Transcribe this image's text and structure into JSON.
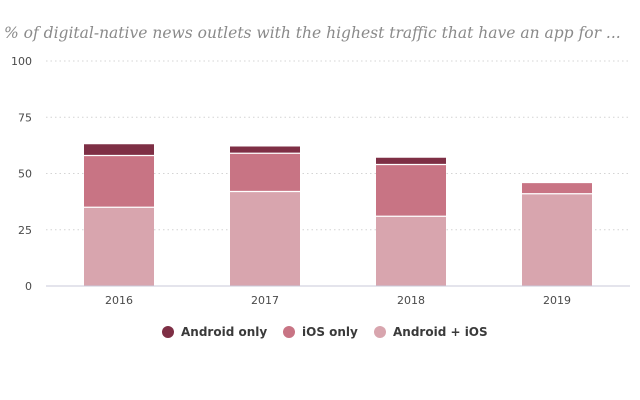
{
  "chart_data": {
    "type": "bar",
    "stacked": true,
    "title": "% of digital-native news outlets with the highest traffic that have an app for ...",
    "xlabel": "",
    "ylabel": "",
    "categories": [
      "2016",
      "2017",
      "2018",
      "2019"
    ],
    "series": [
      {
        "name": "Android + iOS",
        "color": "#d8a5ae",
        "values": [
          35,
          42,
          31,
          41
        ]
      },
      {
        "name": "iOS only",
        "color": "#c87484",
        "values": [
          23,
          17,
          23,
          5
        ]
      },
      {
        "name": "Android only",
        "color": "#7e2f45",
        "values": [
          5,
          3,
          3,
          0
        ]
      }
    ],
    "legend_order": [
      "Android only",
      "iOS only",
      "Android + iOS"
    ],
    "ylim": [
      0,
      100
    ],
    "yticks": [
      "0",
      "25",
      "50",
      "75",
      "100"
    ],
    "grid": "horizontal dotted",
    "legend_position": "bottom"
  }
}
